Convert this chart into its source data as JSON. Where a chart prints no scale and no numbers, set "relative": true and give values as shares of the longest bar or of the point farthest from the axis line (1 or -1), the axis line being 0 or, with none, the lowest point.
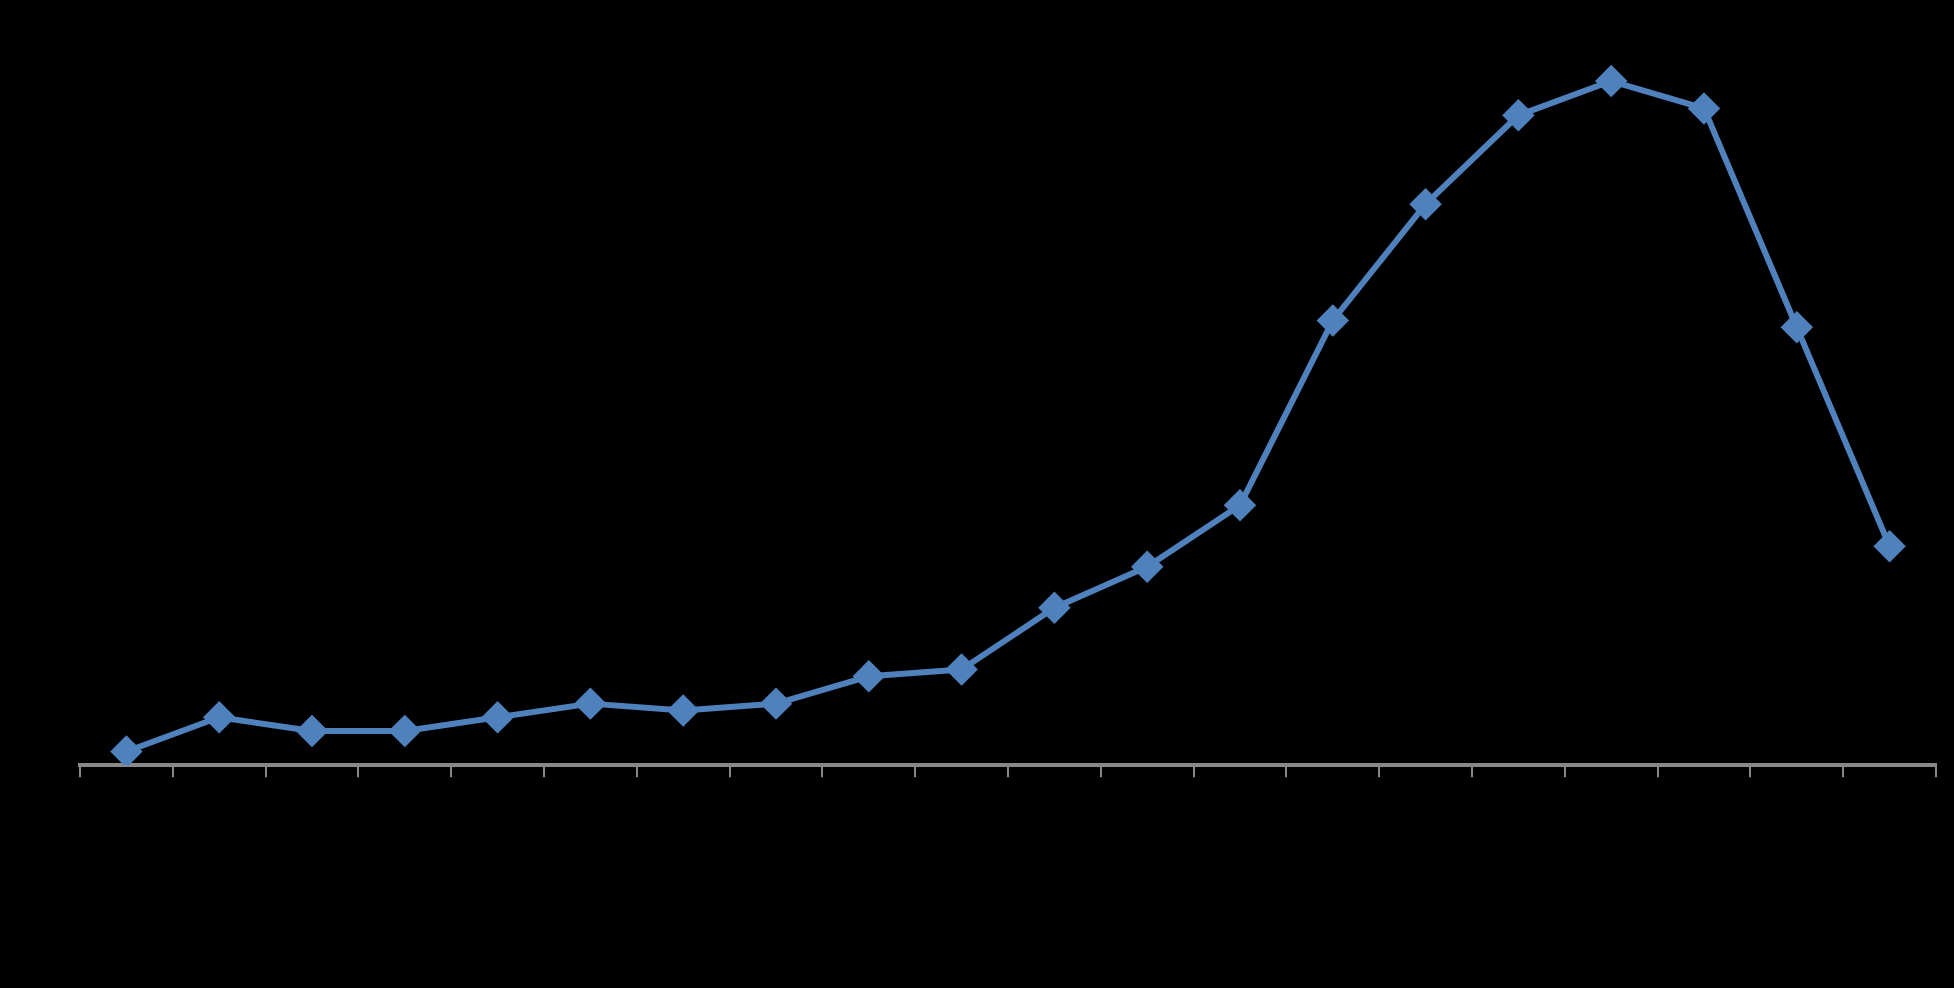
{
  "chart_data": {
    "type": "line",
    "relative": true,
    "categories": [
      null,
      null,
      null,
      null,
      null,
      null,
      null,
      null,
      null,
      null,
      null,
      null,
      null,
      null,
      null,
      null,
      null,
      null,
      null,
      null
    ],
    "series": [
      {
        "color": "#4f81bd",
        "values": [
          0.02,
          0.07,
          0.05,
          0.05,
          0.07,
          0.09,
          0.08,
          0.09,
          0.13,
          0.14,
          0.23,
          0.29,
          0.38,
          0.65,
          0.82,
          0.95,
          1,
          0.96,
          0.64,
          0.32
        ]
      }
    ],
    "marker": "diamond",
    "line_style": "solid",
    "grid": false,
    "legend": false
  }
}
